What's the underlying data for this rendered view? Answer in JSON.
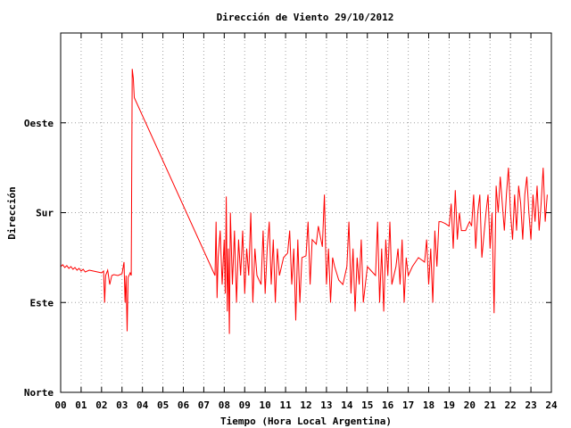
{
  "chart_data": {
    "type": "line",
    "title": "Dirección de Viento 29/10/2012",
    "xlabel": "Tiempo (Hora Local Argentina)",
    "ylabel": "Dirección",
    "xlim": [
      0,
      24
    ],
    "ylim": [
      0,
      4
    ],
    "x_ticks": [
      {
        "value": 0,
        "label": "00"
      },
      {
        "value": 1,
        "label": "01"
      },
      {
        "value": 2,
        "label": "02"
      },
      {
        "value": 3,
        "label": "03"
      },
      {
        "value": 4,
        "label": "04"
      },
      {
        "value": 5,
        "label": "05"
      },
      {
        "value": 6,
        "label": "06"
      },
      {
        "value": 7,
        "label": "07"
      },
      {
        "value": 8,
        "label": "08"
      },
      {
        "value": 9,
        "label": "09"
      },
      {
        "value": 10,
        "label": "10"
      },
      {
        "value": 11,
        "label": "11"
      },
      {
        "value": 12,
        "label": "12"
      },
      {
        "value": 13,
        "label": "13"
      },
      {
        "value": 14,
        "label": "14"
      },
      {
        "value": 15,
        "label": "15"
      },
      {
        "value": 16,
        "label": "16"
      },
      {
        "value": 17,
        "label": "17"
      },
      {
        "value": 18,
        "label": "18"
      },
      {
        "value": 19,
        "label": "19"
      },
      {
        "value": 20,
        "label": "20"
      },
      {
        "value": 21,
        "label": "21"
      },
      {
        "value": 22,
        "label": "22"
      },
      {
        "value": 23,
        "label": "23"
      },
      {
        "value": 24,
        "label": "24"
      }
    ],
    "y_ticks": [
      {
        "value": 0,
        "label": "Norte"
      },
      {
        "value": 1,
        "label": "Este"
      },
      {
        "value": 2,
        "label": "Sur"
      },
      {
        "value": 3,
        "label": "Oeste"
      }
    ],
    "grid": true,
    "legend": "none",
    "series": [
      {
        "color": "#ff0000",
        "points": [
          [
            0.0,
            1.4
          ],
          [
            0.1,
            1.42
          ],
          [
            0.2,
            1.39
          ],
          [
            0.3,
            1.41
          ],
          [
            0.4,
            1.38
          ],
          [
            0.5,
            1.4
          ],
          [
            0.6,
            1.37
          ],
          [
            0.7,
            1.39
          ],
          [
            0.8,
            1.36
          ],
          [
            0.9,
            1.38
          ],
          [
            1.0,
            1.35
          ],
          [
            1.1,
            1.37
          ],
          [
            1.2,
            1.34
          ],
          [
            1.4,
            1.36
          ],
          [
            1.6,
            1.35
          ],
          [
            1.8,
            1.34
          ],
          [
            2.0,
            1.33
          ],
          [
            2.1,
            1.35
          ],
          [
            2.15,
            1.0
          ],
          [
            2.2,
            1.3
          ],
          [
            2.3,
            1.36
          ],
          [
            2.4,
            1.2
          ],
          [
            2.5,
            1.3
          ],
          [
            2.6,
            1.31
          ],
          [
            2.8,
            1.3
          ],
          [
            3.0,
            1.32
          ],
          [
            3.1,
            1.45
          ],
          [
            3.15,
            1.0
          ],
          [
            3.2,
            1.3
          ],
          [
            3.25,
            0.68
          ],
          [
            3.3,
            1.28
          ],
          [
            3.4,
            1.33
          ],
          [
            3.45,
            1.3
          ],
          [
            3.5,
            3.6
          ],
          [
            3.55,
            3.5
          ],
          [
            3.6,
            3.28
          ],
          [
            7.55,
            1.3
          ],
          [
            7.6,
            1.9
          ],
          [
            7.65,
            1.05
          ],
          [
            7.7,
            1.5
          ],
          [
            7.8,
            1.8
          ],
          [
            7.9,
            1.2
          ],
          [
            8.0,
            1.7
          ],
          [
            8.05,
            1.1
          ],
          [
            8.1,
            2.18
          ],
          [
            8.15,
            0.9
          ],
          [
            8.2,
            1.6
          ],
          [
            8.25,
            0.65
          ],
          [
            8.3,
            2.0
          ],
          [
            8.4,
            1.2
          ],
          [
            8.5,
            1.8
          ],
          [
            8.6,
            1.0
          ],
          [
            8.7,
            1.7
          ],
          [
            8.8,
            1.3
          ],
          [
            8.9,
            1.8
          ],
          [
            9.0,
            1.1
          ],
          [
            9.1,
            1.6
          ],
          [
            9.2,
            1.3
          ],
          [
            9.3,
            2.0
          ],
          [
            9.4,
            1.0
          ],
          [
            9.5,
            1.6
          ],
          [
            9.6,
            1.3
          ],
          [
            9.8,
            1.2
          ],
          [
            9.9,
            1.8
          ],
          [
            10.0,
            1.1
          ],
          [
            10.1,
            1.6
          ],
          [
            10.2,
            1.9
          ],
          [
            10.3,
            1.2
          ],
          [
            10.4,
            1.7
          ],
          [
            10.5,
            1.0
          ],
          [
            10.6,
            1.6
          ],
          [
            10.7,
            1.3
          ],
          [
            10.9,
            1.5
          ],
          [
            11.1,
            1.55
          ],
          [
            11.2,
            1.8
          ],
          [
            11.3,
            1.2
          ],
          [
            11.4,
            1.6
          ],
          [
            11.5,
            0.8
          ],
          [
            11.6,
            1.7
          ],
          [
            11.7,
            1.0
          ],
          [
            11.8,
            1.5
          ],
          [
            12.0,
            1.52
          ],
          [
            12.1,
            1.9
          ],
          [
            12.2,
            1.2
          ],
          [
            12.3,
            1.7
          ],
          [
            12.5,
            1.65
          ],
          [
            12.6,
            1.85
          ],
          [
            12.8,
            1.62
          ],
          [
            12.9,
            2.2
          ],
          [
            13.0,
            1.2
          ],
          [
            13.1,
            1.6
          ],
          [
            13.2,
            1.0
          ],
          [
            13.3,
            1.5
          ],
          [
            13.4,
            1.4
          ],
          [
            13.6,
            1.25
          ],
          [
            13.8,
            1.2
          ],
          [
            14.0,
            1.4
          ],
          [
            14.1,
            1.9
          ],
          [
            14.2,
            1.1
          ],
          [
            14.3,
            1.6
          ],
          [
            14.4,
            0.9
          ],
          [
            14.5,
            1.5
          ],
          [
            14.6,
            1.2
          ],
          [
            14.7,
            1.7
          ],
          [
            14.8,
            1.0
          ],
          [
            15.0,
            1.4
          ],
          [
            15.2,
            1.35
          ],
          [
            15.4,
            1.3
          ],
          [
            15.5,
            1.9
          ],
          [
            15.6,
            1.0
          ],
          [
            15.7,
            1.6
          ],
          [
            15.8,
            0.9
          ],
          [
            15.9,
            1.7
          ],
          [
            16.0,
            1.3
          ],
          [
            16.1,
            1.9
          ],
          [
            16.2,
            1.2
          ],
          [
            16.4,
            1.4
          ],
          [
            16.5,
            1.6
          ],
          [
            16.6,
            1.2
          ],
          [
            16.7,
            1.7
          ],
          [
            16.8,
            1.0
          ],
          [
            16.9,
            1.5
          ],
          [
            17.0,
            1.3
          ],
          [
            17.2,
            1.4
          ],
          [
            17.5,
            1.5
          ],
          [
            17.8,
            1.45
          ],
          [
            17.9,
            1.7
          ],
          [
            18.0,
            1.2
          ],
          [
            18.1,
            1.6
          ],
          [
            18.2,
            1.0
          ],
          [
            18.3,
            1.8
          ],
          [
            18.4,
            1.4
          ],
          [
            18.5,
            1.9
          ],
          [
            18.6,
            1.9
          ],
          [
            18.8,
            1.88
          ],
          [
            19.0,
            1.85
          ],
          [
            19.1,
            2.1
          ],
          [
            19.2,
            1.6
          ],
          [
            19.3,
            2.25
          ],
          [
            19.4,
            1.7
          ],
          [
            19.5,
            2.0
          ],
          [
            19.6,
            1.8
          ],
          [
            19.8,
            1.8
          ],
          [
            20.0,
            1.9
          ],
          [
            20.1,
            1.85
          ],
          [
            20.2,
            2.2
          ],
          [
            20.3,
            1.6
          ],
          [
            20.4,
            2.0
          ],
          [
            20.5,
            2.2
          ],
          [
            20.6,
            1.5
          ],
          [
            20.8,
            2.0
          ],
          [
            20.9,
            2.2
          ],
          [
            21.0,
            1.6
          ],
          [
            21.1,
            2.0
          ],
          [
            21.2,
            0.88
          ],
          [
            21.3,
            2.3
          ],
          [
            21.4,
            2.0
          ],
          [
            21.5,
            2.4
          ],
          [
            21.6,
            2.1
          ],
          [
            21.7,
            1.8
          ],
          [
            21.8,
            2.2
          ],
          [
            21.9,
            2.5
          ],
          [
            22.0,
            2.0
          ],
          [
            22.1,
            1.7
          ],
          [
            22.2,
            2.2
          ],
          [
            22.3,
            1.8
          ],
          [
            22.4,
            2.3
          ],
          [
            22.5,
            2.1
          ],
          [
            22.6,
            1.7
          ],
          [
            22.7,
            2.2
          ],
          [
            22.8,
            2.4
          ],
          [
            22.9,
            2.0
          ],
          [
            23.0,
            1.7
          ],
          [
            23.1,
            2.2
          ],
          [
            23.2,
            1.9
          ],
          [
            23.3,
            2.3
          ],
          [
            23.4,
            1.8
          ],
          [
            23.5,
            2.1
          ],
          [
            23.6,
            2.5
          ],
          [
            23.7,
            1.9
          ],
          [
            23.8,
            2.2
          ]
        ]
      }
    ]
  }
}
